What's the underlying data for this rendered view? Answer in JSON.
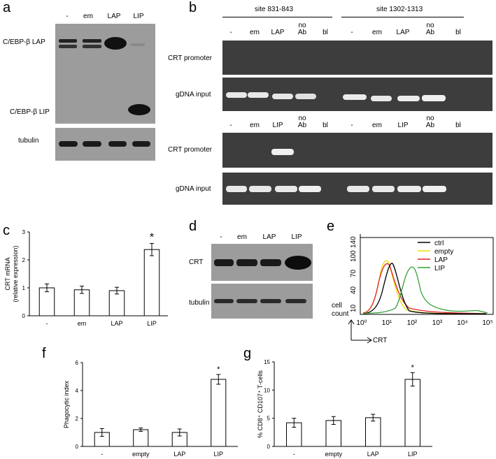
{
  "panels": {
    "a": {
      "label": "a",
      "lanes": [
        "-",
        "em",
        "LAP",
        "LIP"
      ],
      "rows": [
        "C/EBP-β LAP",
        "C/EBP-β LIP",
        "tubulin"
      ]
    },
    "b": {
      "label": "b",
      "site1": "site 831-843",
      "site2": "site 1302-1313",
      "top_lanes": [
        "-",
        "em",
        "LAP",
        "no Ab",
        "bl",
        "-",
        "em",
        "LAP",
        "no Ab",
        "bl"
      ],
      "bottom_lanes": [
        "-",
        "em",
        "LIP",
        "no Ab",
        "bl",
        "-",
        "em",
        "LIP",
        "no Ab",
        "bl"
      ],
      "rows": [
        "CRT promoter",
        "gDNA input",
        "CRT promoter",
        "gDNA input"
      ]
    },
    "d": {
      "label": "d",
      "lanes": [
        "-",
        "em",
        "LAP",
        "LIP"
      ],
      "rows": [
        "CRT",
        "tubulin"
      ]
    },
    "e": {
      "label": "e",
      "legend": [
        "ctrl",
        "empty",
        "LAP",
        "LIP"
      ],
      "colors": [
        "#000000",
        "#e8e000",
        "#e02020",
        "#30a030"
      ],
      "y_ticks": [
        "140",
        "100",
        "70",
        "40",
        "10"
      ],
      "y_label_1": "cell",
      "y_label_2": "count",
      "x_label": "CRT",
      "x_ticks": [
        "10⁰",
        "10¹",
        "10²",
        "10³",
        "10⁴",
        "10⁵"
      ]
    }
  },
  "chart_data": [
    {
      "type": "bar",
      "panel": "c",
      "label": "c",
      "categories": [
        "-",
        "em",
        "LAP",
        "LIP"
      ],
      "values": [
        1.0,
        0.93,
        0.9,
        2.37
      ],
      "errors": [
        0.14,
        0.13,
        0.12,
        0.22
      ],
      "ylabel": "CRT mRNA",
      "ylabel2": "(relative expression)",
      "ylim": [
        0,
        3
      ],
      "yticks": [
        "0",
        "1",
        "2",
        "3"
      ],
      "annotation": "*"
    },
    {
      "type": "bar",
      "panel": "f",
      "label": "f",
      "categories": [
        "-",
        "empty",
        "LAP",
        "LIP"
      ],
      "values": [
        1.0,
        1.2,
        1.0,
        4.8
      ],
      "errors": [
        0.28,
        0.12,
        0.25,
        0.35
      ],
      "ylabel": "Phagocytic index",
      "ylim": [
        0,
        6
      ],
      "yticks": [
        "0",
        "2",
        "4",
        "6"
      ],
      "annotation": "*"
    },
    {
      "type": "bar",
      "panel": "g",
      "label": "g",
      "categories": [
        "-",
        "empty",
        "LAP",
        "LIP"
      ],
      "values": [
        4.2,
        4.6,
        5.1,
        11.9
      ],
      "errors": [
        0.8,
        0.7,
        0.6,
        1.2
      ],
      "ylabel": "% CD8⁺ CD107⁺ T-cells",
      "ylim": [
        0,
        15
      ],
      "yticks": [
        "0",
        "5",
        "10",
        "15"
      ],
      "annotation": "*"
    }
  ]
}
